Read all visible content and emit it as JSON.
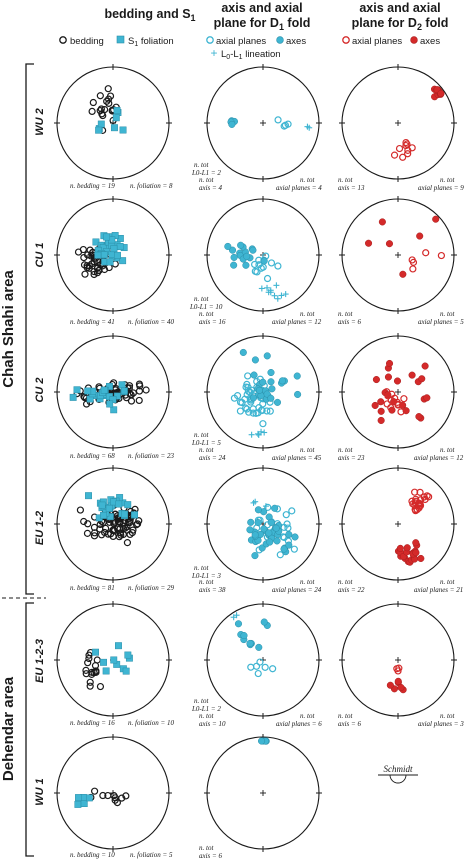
{
  "headers": {
    "col1": {
      "line1": "bedding and S",
      "sub1": "1"
    },
    "col2": {
      "line1": "axis and axial",
      "line2": "plane for D",
      "sub2": "1",
      "line2b": " fold"
    },
    "col3": {
      "line1": "axis and axial",
      "line2": "plane for D",
      "sub2": "2",
      "line2b": " fold"
    }
  },
  "legends": {
    "col1": {
      "bedding": "bedding",
      "foliation_pre": "S",
      "foliation_sub": "1",
      "foliation_post": " foliation"
    },
    "col2": {
      "axial_planes": "axial planes",
      "axes": "axes",
      "lineation_pre": "L",
      "lineation_sub0": "0",
      "lineation_mid": "-L",
      "lineation_sub1": "1",
      "lineation_post": " lineation"
    },
    "col3": {
      "axial_planes": "axial planes",
      "axes": "axes"
    }
  },
  "areas": {
    "chah_shahi": "Chah Shahi area",
    "dehendar": "Dehendar area"
  },
  "units": [
    "WU 2",
    "CU 1",
    "CU 2",
    "EU 1-2",
    "EU 1-2-3",
    "WU 1"
  ],
  "counts": [
    {
      "bed": "n. bedding = 19",
      "fol": "n. foliation = 8",
      "d1": [
        "n. tot",
        "L0-L1 = 2",
        "n. tot",
        "axis = 4",
        "n. tot",
        "axial planes = 4"
      ],
      "d2": [
        "n. tot",
        "axis = 13",
        "n. tot",
        "axial planes = 9"
      ]
    },
    {
      "bed": "n. bedding = 41",
      "fol": "n. foliation = 40",
      "d1": [
        "n. tot",
        "L0-L1 = 10",
        "n. tot",
        "axis = 16",
        "n. tot",
        "axial planes = 12"
      ],
      "d2": [
        "n. tot",
        "axis = 6",
        "n. tot",
        "axial planes = 5"
      ]
    },
    {
      "bed": "n. bedding = 68",
      "fol": "n. foliation = 23",
      "d1": [
        "n. tot",
        "L0-L1 = 5",
        "n. tot",
        "axis = 24",
        "n. tot",
        "axial planes = 45"
      ],
      "d2": [
        "n. tot",
        "axis = 23",
        "n. tot",
        "axial planes = 12"
      ]
    },
    {
      "bed": "n. bedding = 81",
      "fol": "n. foliation = 29",
      "d1": [
        "n. tot",
        "L0-L1 = 3",
        "n. tot",
        "axis = 38",
        "n. tot",
        "axial planes = 24"
      ],
      "d2": [
        "n. tot",
        "axis = 22",
        "n. tot",
        "axial planes = 21"
      ]
    },
    {
      "bed": "n. bedding = 16",
      "fol": "n. foliation = 10",
      "d1": [
        "n. tot",
        "L0-L1 = 2",
        "n. tot",
        "axis = 10",
        "n. tot",
        "axial planes = 6"
      ],
      "d2": [
        "n. tot",
        "axis = 6",
        "n. tot",
        "axial planes = 3"
      ]
    },
    {
      "bed": "n. bedding = 10",
      "fol": "n. foliation = 5",
      "d1": [
        "n. tot",
        "axis = 6"
      ]
    }
  ],
  "projection_label": "Schmidt",
  "colors": {
    "bedding": "#1a1a1a",
    "d1": "#3fb5d2",
    "d2": "#d42a2a",
    "frame": "#1a1a1a"
  }
}
